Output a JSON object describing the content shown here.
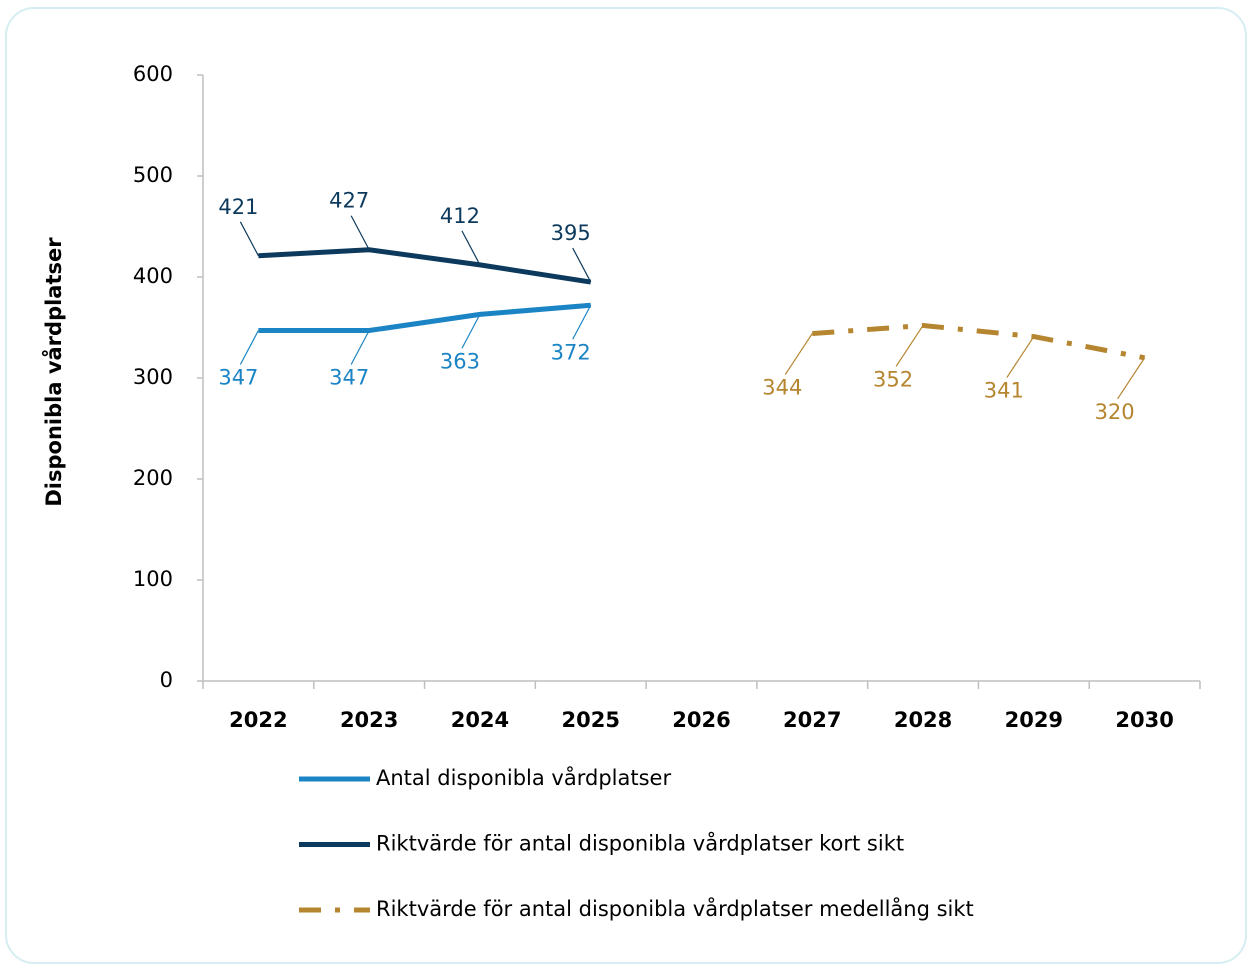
{
  "chart_data": {
    "type": "line",
    "y_axis_label": "Disponibla vårdplatser",
    "categories": [
      "2022",
      "2023",
      "2024",
      "2025",
      "2026",
      "2027",
      "2028",
      "2029",
      "2030"
    ],
    "series": [
      {
        "name": "Antal disponibla vårdplatser",
        "color": "#1b84c4",
        "line_style": "solid",
        "values": [
          347,
          347,
          363,
          372,
          null,
          null,
          null,
          null,
          null
        ]
      },
      {
        "name": "Riktvärde för antal disponibla vårdplatser kort sikt",
        "color": "#0d3a5c",
        "line_style": "solid",
        "values": [
          421,
          427,
          412,
          395,
          null,
          null,
          null,
          null,
          null
        ]
      },
      {
        "name": "Riktvärde för antal disponibla vårdplatser medellång sikt",
        "color": "#b5852f",
        "line_style": "dash-dot",
        "values": [
          null,
          null,
          null,
          null,
          null,
          344,
          352,
          341,
          320
        ]
      }
    ],
    "ylim": [
      0,
      600
    ],
    "yticks": [
      0,
      100,
      200,
      300,
      400,
      500,
      600
    ],
    "legend": "bottom"
  }
}
